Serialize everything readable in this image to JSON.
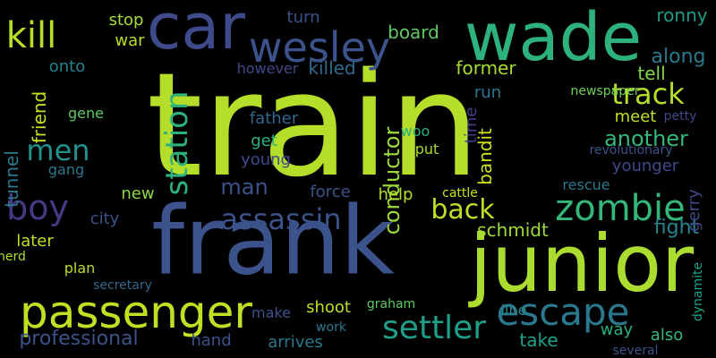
{
  "words": [
    {
      "text": "train",
      "color": "#b5de2b"
    },
    {
      "text": "frank",
      "color": "#3b528b"
    },
    {
      "text": "junior",
      "color": "#addc30"
    },
    {
      "text": "wade",
      "color": "#2db27d"
    },
    {
      "text": "car",
      "color": "#3e4a89"
    },
    {
      "text": "passenger",
      "color": "#c2df23"
    },
    {
      "text": "wesley",
      "color": "#3b528b"
    },
    {
      "text": "kill",
      "color": "#b8de29"
    },
    {
      "text": "zombie",
      "color": "#35b779"
    },
    {
      "text": "escape",
      "color": "#2a788e"
    },
    {
      "text": "boy",
      "color": "#443a83"
    },
    {
      "text": "settler",
      "color": "#1f9e89"
    },
    {
      "text": "assassin",
      "color": "#3b528b"
    },
    {
      "text": "men",
      "color": "#21918c"
    },
    {
      "text": "track",
      "color": "#b5de2b"
    },
    {
      "text": "man",
      "color": "#3b528b"
    },
    {
      "text": "station",
      "color": "#2db27d"
    },
    {
      "text": "back",
      "color": "#bddf26"
    },
    {
      "text": "along",
      "color": "#2a788e"
    },
    {
      "text": "another",
      "color": "#35b779"
    },
    {
      "text": "conductor",
      "color": "#9bd93c"
    },
    {
      "text": "professional",
      "color": "#3b528b"
    },
    {
      "text": "schmidt",
      "color": "#a0da39"
    },
    {
      "text": "fight",
      "color": "#25848e"
    },
    {
      "text": "tunnel",
      "color": "#2a788e"
    },
    {
      "text": "friend",
      "color": "#c8e020"
    },
    {
      "text": "ronny",
      "color": "#1e9c89"
    },
    {
      "text": "gerry",
      "color": "#3e4989"
    },
    {
      "text": "board",
      "color": "#5ec962"
    },
    {
      "text": "killed",
      "color": "#31688e"
    },
    {
      "text": "former",
      "color": "#a8db34"
    },
    {
      "text": "tell",
      "color": "#86d549"
    },
    {
      "text": "younger",
      "color": "#3e4989"
    },
    {
      "text": "bandit",
      "color": "#d0e11c"
    },
    {
      "text": "onto",
      "color": "#26828e"
    },
    {
      "text": "stop",
      "color": "#a5db36"
    },
    {
      "text": "turn",
      "color": "#3b528b"
    },
    {
      "text": "however",
      "color": "#3e4a89"
    },
    {
      "text": "war",
      "color": "#b8de29"
    },
    {
      "text": "father",
      "color": "#31688e"
    },
    {
      "text": "young",
      "color": "#3e4989"
    },
    {
      "text": "get",
      "color": "#2db27d"
    },
    {
      "text": "gene",
      "color": "#5ec962"
    },
    {
      "text": "meet",
      "color": "#c2df23"
    },
    {
      "text": "gang",
      "color": "#2a788e"
    },
    {
      "text": "new",
      "color": "#8fd744"
    },
    {
      "text": "city",
      "color": "#3b528b"
    },
    {
      "text": "force",
      "color": "#3b528b"
    },
    {
      "text": "help",
      "color": "#b5de2b"
    },
    {
      "text": "run",
      "color": "#2a788e"
    },
    {
      "text": "time",
      "color": "#433e85"
    },
    {
      "text": "put",
      "color": "#a8db34"
    },
    {
      "text": "woo",
      "color": "#29af7f"
    },
    {
      "text": "rescue",
      "color": "#2a788e"
    },
    {
      "text": "later",
      "color": "#c2df23"
    },
    {
      "text": "plan",
      "color": "#b5de2b"
    },
    {
      "text": "herd",
      "color": "#addc30"
    },
    {
      "text": "make",
      "color": "#3b528b"
    },
    {
      "text": "shoot",
      "color": "#bddf26"
    },
    {
      "text": "hand",
      "color": "#3b528b"
    },
    {
      "text": "arrives",
      "color": "#2a788e"
    },
    {
      "text": "take",
      "color": "#1fa088"
    },
    {
      "text": "way",
      "color": "#29af7f"
    },
    {
      "text": "also",
      "color": "#35b779"
    },
    {
      "text": "line",
      "color": "#25848e"
    },
    {
      "text": "work",
      "color": "#2a788e"
    },
    {
      "text": "graham",
      "color": "#5ec962"
    },
    {
      "text": "newspaper",
      "color": "#6ece58"
    },
    {
      "text": "petty",
      "color": "#3e4a89"
    },
    {
      "text": "revolutionary",
      "color": "#3b528b"
    },
    {
      "text": "secretary",
      "color": "#31688e"
    },
    {
      "text": "cattle",
      "color": "#c8e020"
    },
    {
      "text": "several",
      "color": "#3b528b"
    },
    {
      "text": "dynamite",
      "color": "#1fa088"
    }
  ]
}
